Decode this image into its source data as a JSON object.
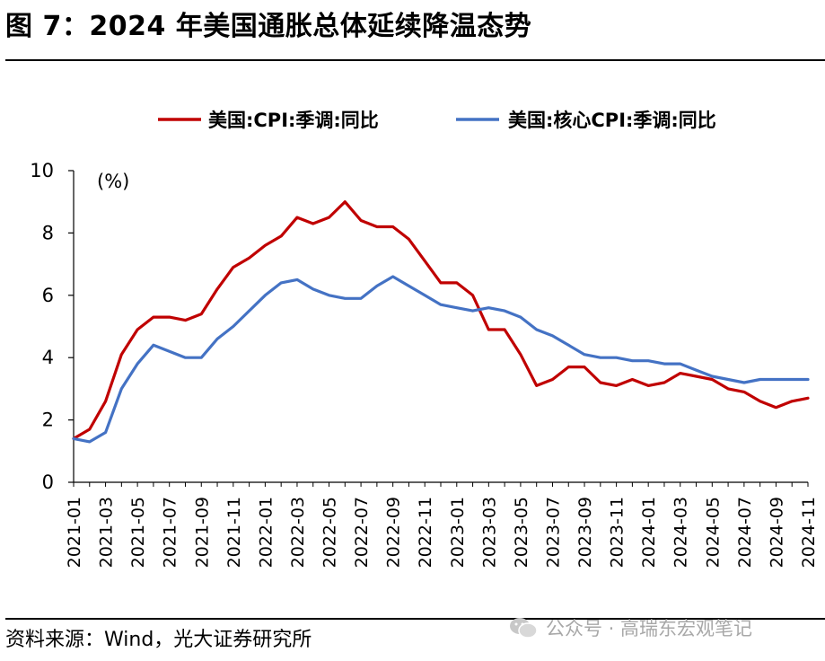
{
  "page": {
    "title": "图 7：2024 年美国通胀总体延续降温态势",
    "source": "资料来源：Wind，光大证券研究所",
    "watermark": "公众号 · 高瑞东宏观笔记"
  },
  "chart_data": {
    "type": "line",
    "title": "",
    "unit_label": "(%)",
    "xlabel": "",
    "ylabel": "(%)",
    "ylim": [
      0,
      10
    ],
    "yticks": [
      0,
      2,
      4,
      6,
      8,
      10
    ],
    "grid": false,
    "legend_position": "top",
    "x": [
      "2021-01",
      "2021-02",
      "2021-03",
      "2021-04",
      "2021-05",
      "2021-06",
      "2021-07",
      "2021-08",
      "2021-09",
      "2021-10",
      "2021-11",
      "2021-12",
      "2022-01",
      "2022-02",
      "2022-03",
      "2022-04",
      "2022-05",
      "2022-06",
      "2022-07",
      "2022-08",
      "2022-09",
      "2022-10",
      "2022-11",
      "2022-12",
      "2023-01",
      "2023-02",
      "2023-03",
      "2023-04",
      "2023-05",
      "2023-06",
      "2023-07",
      "2023-08",
      "2023-09",
      "2023-10",
      "2023-11",
      "2023-12",
      "2024-01",
      "2024-02",
      "2024-03",
      "2024-04",
      "2024-05",
      "2024-06",
      "2024-07",
      "2024-08",
      "2024-09",
      "2024-10",
      "2024-11"
    ],
    "xtick_labels": [
      "2021-01",
      "2021-03",
      "2021-05",
      "2021-07",
      "2021-09",
      "2021-11",
      "2022-01",
      "2022-03",
      "2022-05",
      "2022-07",
      "2022-09",
      "2022-11",
      "2023-01",
      "2023-03",
      "2023-05",
      "2023-07",
      "2023-09",
      "2023-11",
      "2024-01",
      "2024-03",
      "2024-05",
      "2024-07",
      "2024-09",
      "2024-11"
    ],
    "series": [
      {
        "name": "美国:CPI:季调:同比",
        "color": "#c00000",
        "values": [
          1.4,
          1.7,
          2.6,
          4.1,
          4.9,
          5.3,
          5.3,
          5.2,
          5.4,
          6.2,
          6.9,
          7.2,
          7.6,
          7.9,
          8.5,
          8.3,
          8.5,
          9.0,
          8.4,
          8.2,
          8.2,
          7.8,
          7.1,
          6.4,
          6.4,
          6.0,
          4.9,
          4.9,
          4.1,
          3.1,
          3.3,
          3.7,
          3.7,
          3.2,
          3.1,
          3.3,
          3.1,
          3.2,
          3.5,
          3.4,
          3.3,
          3.0,
          2.9,
          2.6,
          2.4,
          2.6,
          2.7
        ]
      },
      {
        "name": "美国:核心CPI:季调:同比",
        "color": "#4472c4",
        "values": [
          1.4,
          1.3,
          1.6,
          3.0,
          3.8,
          4.4,
          4.2,
          4.0,
          4.0,
          4.6,
          5.0,
          5.5,
          6.0,
          6.4,
          6.5,
          6.2,
          6.0,
          5.9,
          5.9,
          6.3,
          6.6,
          6.3,
          6.0,
          5.7,
          5.6,
          5.5,
          5.6,
          5.5,
          5.3,
          4.9,
          4.7,
          4.4,
          4.1,
          4.0,
          4.0,
          3.9,
          3.9,
          3.8,
          3.8,
          3.6,
          3.4,
          3.3,
          3.2,
          3.3,
          3.3,
          3.3,
          3.3
        ]
      }
    ]
  }
}
